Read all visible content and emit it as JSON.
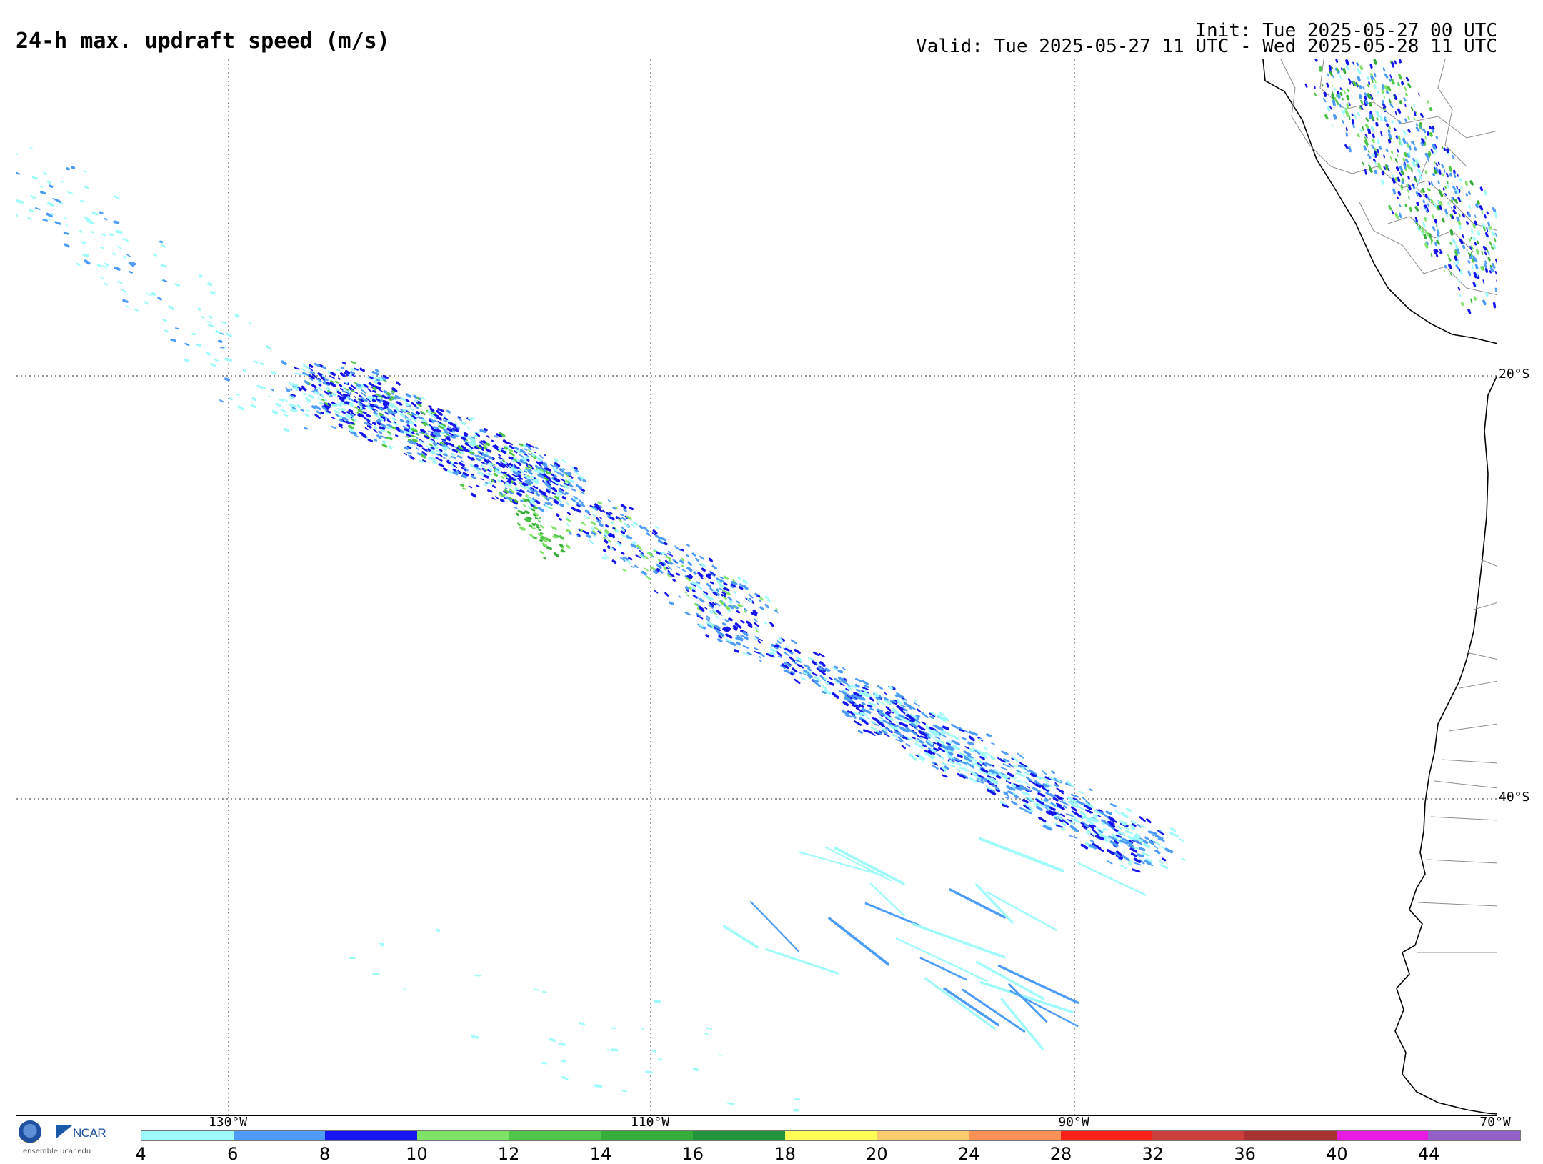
{
  "title": "24-h max. updraft speed (m/s)",
  "init": "Init: Tue 2025-05-27 00 UTC",
  "valid": "Valid: Tue 2025-05-27 11 UTC - Wed 2025-05-28 11 UTC",
  "map": {
    "lat_labels": [
      "20°S",
      "40°S"
    ],
    "lon_labels": [
      "130°W",
      "110°W",
      "90°W",
      "70°W"
    ],
    "grid_style": "dotted",
    "updraft_fields": [
      {
        "region": "central pacific band",
        "peak_ms": 12
      },
      {
        "region": "southeast pacific band",
        "peak_ms": 10
      },
      {
        "region": "southern streaks",
        "peak_ms": 8
      },
      {
        "region": "peru / bolivia interior",
        "peak_ms": 14
      }
    ]
  },
  "colorbar": {
    "ticks": [
      "4",
      "6",
      "8",
      "10",
      "12",
      "14",
      "16",
      "18",
      "20",
      "24",
      "28",
      "32",
      "36",
      "40",
      "44"
    ],
    "colors": [
      "#9ffbfb",
      "#4c9cf8",
      "#1515f0",
      "#80e266",
      "#4fc649",
      "#35ad3a",
      "#22933a",
      "#ffff55",
      "#fbcc6e",
      "#fb9155",
      "#f8221a",
      "#cd3f3c",
      "#a73231",
      "#e81ae3",
      "#9560c8"
    ]
  },
  "logo": {
    "org": "NCAR",
    "url": "ensemble.ucar.edu"
  }
}
